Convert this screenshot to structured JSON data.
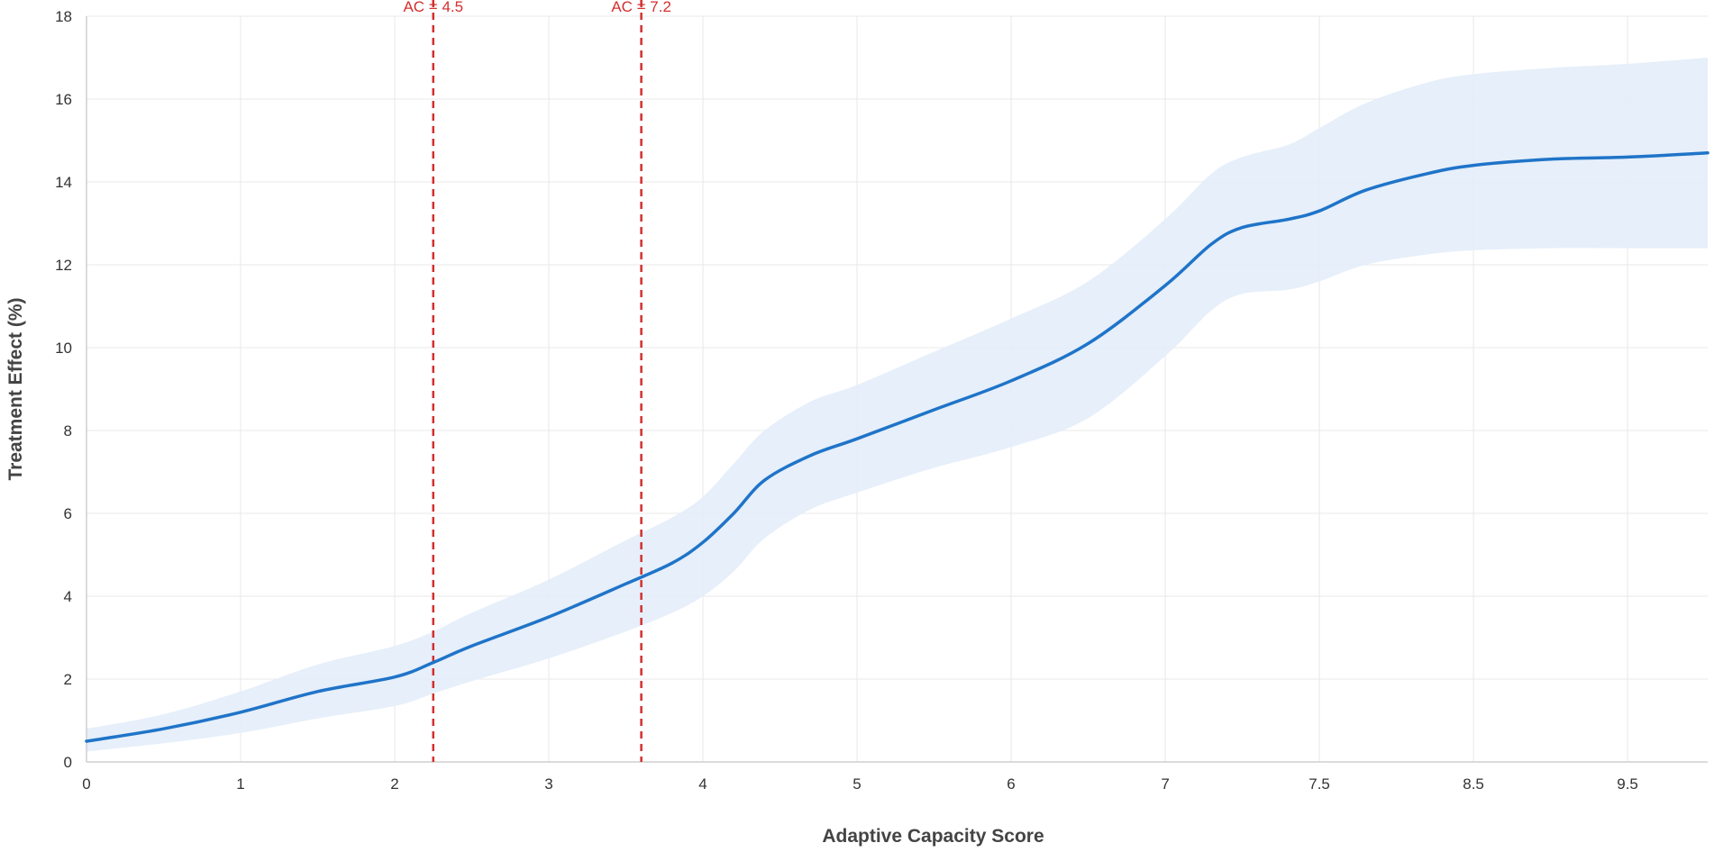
{
  "chart_data": {
    "type": "line",
    "xlabel": "Adaptive Capacity Score",
    "ylabel": "Treatment Effect (%)",
    "x_tick_positions": [
      0,
      1,
      2,
      3,
      4,
      5,
      6,
      7,
      8,
      9,
      10
    ],
    "x_tick_labels": [
      "0",
      "1",
      "2",
      "3",
      "4",
      "5",
      "6",
      "7",
      "7.5",
      "8.5",
      "9.5"
    ],
    "xlim": [
      0,
      10.52
    ],
    "ylim": [
      0,
      18
    ],
    "y_ticks": [
      0,
      2,
      4,
      6,
      8,
      10,
      12,
      14,
      16,
      18
    ],
    "grid": true,
    "colors": {
      "line": "#1f74c8",
      "band": "#e3edfa",
      "reference": "#d32f2f",
      "grid": "#e8e8e8"
    },
    "series": [
      {
        "x": [
          0,
          0.5,
          1,
          1.5,
          2,
          2.25,
          2.5,
          3,
          3.5,
          3.8,
          4,
          4.2,
          4.4,
          4.7,
          5,
          5.5,
          6,
          6.5,
          7,
          7.3,
          7.5,
          7.8,
          8,
          8.3,
          8.7,
          9,
          9.5,
          10,
          10.52
        ],
        "y": [
          0.5,
          0.8,
          1.2,
          1.7,
          2.05,
          2.4,
          2.8,
          3.5,
          4.3,
          4.8,
          5.3,
          6.0,
          6.8,
          7.4,
          7.8,
          8.5,
          9.2,
          10.1,
          11.5,
          12.5,
          12.9,
          13.1,
          13.3,
          13.8,
          14.2,
          14.4,
          14.55,
          14.6,
          14.7
        ],
        "lower": [
          0.25,
          0.45,
          0.7,
          1.05,
          1.35,
          1.65,
          1.95,
          2.5,
          3.15,
          3.6,
          4.0,
          4.6,
          5.4,
          6.1,
          6.5,
          7.1,
          7.6,
          8.3,
          9.8,
          10.9,
          11.3,
          11.4,
          11.6,
          12.0,
          12.25,
          12.35,
          12.4,
          12.4,
          12.4
        ],
        "upper": [
          0.8,
          1.15,
          1.7,
          2.35,
          2.8,
          3.15,
          3.6,
          4.4,
          5.35,
          5.9,
          6.4,
          7.2,
          8.0,
          8.7,
          9.1,
          9.9,
          10.7,
          11.6,
          13.1,
          14.2,
          14.6,
          14.9,
          15.3,
          15.9,
          16.4,
          16.6,
          16.75,
          16.85,
          17.0
        ]
      }
    ],
    "reference_lines": [
      {
        "x": 2.25,
        "label": "AC = 4.5"
      },
      {
        "x": 3.6,
        "label": "AC = 7.2"
      }
    ]
  }
}
